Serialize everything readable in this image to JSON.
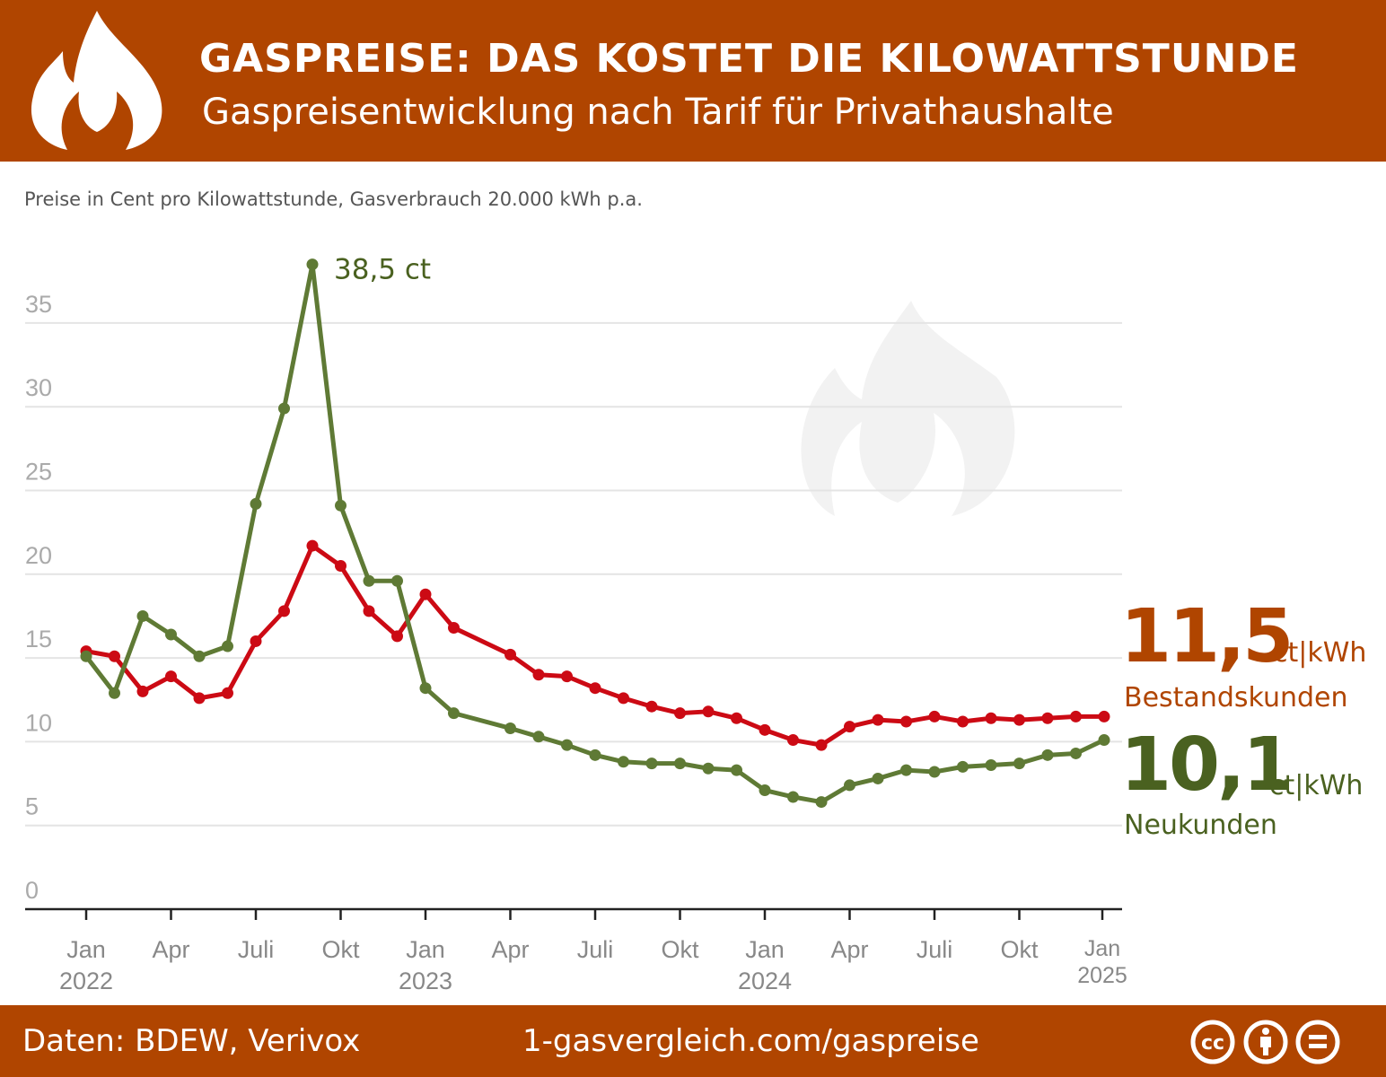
{
  "header": {
    "title": "GASPREISE: DAS KOSTET DIE KILOWATTSTUNDE",
    "subtitle": "Gaspreisentwicklung nach Tarif für Privathaushalte",
    "icon": "flame-icon"
  },
  "note": "Preise in Cent pro Kilowattstunde, Gasverbrauch 20.000 kWh p.a.",
  "footer": {
    "source": "Daten: BDEW, Verivox",
    "url": "1-gasvergleich.com/gaspreise",
    "license_icons": [
      "cc-icon",
      "by-icon",
      "nd-icon"
    ]
  },
  "labels": {
    "bestand_value": "11,5",
    "bestand_unit": "ct|kWh",
    "bestand_name": "Bestandskunden",
    "neu_value": "10,1",
    "neu_unit": "ct|kWh",
    "neu_name": "Neukunden",
    "peak": "38,5 ct"
  },
  "colors": {
    "brand": "#b04500",
    "bestand": "#cc0a14",
    "neu": "#5f7a35",
    "neu_label": "#4a6120"
  },
  "chart_data": {
    "type": "line",
    "title": "GASPREISE: DAS KOSTET DIE KILOWATTSTUNDE",
    "ylim": [
      0,
      35
    ],
    "yticks": [
      0,
      5,
      10,
      15,
      20,
      25,
      30,
      35
    ],
    "grid": true,
    "xtick_labels": [
      [
        "Jan",
        "2022"
      ],
      [
        "Apr",
        ""
      ],
      [
        "Juli",
        ""
      ],
      [
        "Okt",
        ""
      ],
      [
        "Jan",
        "2023"
      ],
      [
        "Apr",
        ""
      ],
      [
        "Juli",
        ""
      ],
      [
        "Okt",
        ""
      ],
      [
        "Jan",
        "2024"
      ],
      [
        "Apr",
        ""
      ],
      [
        "Juli",
        ""
      ],
      [
        "Okt",
        ""
      ],
      [
        "Jan",
        "2025"
      ]
    ],
    "x": [
      "2022-01",
      "2022-02",
      "2022-03",
      "2022-04",
      "2022-05",
      "2022-06",
      "2022-07",
      "2022-08",
      "2022-09",
      "2022-10",
      "2022-11",
      "2022-12",
      "2023-01",
      "2023-02",
      "2023-03",
      "2023-04",
      "2023-05",
      "2023-06",
      "2023-07",
      "2023-08",
      "2023-09",
      "2023-10",
      "2023-11",
      "2023-12",
      "2024-01",
      "2024-02",
      "2024-03",
      "2024-04",
      "2024-05",
      "2024-06",
      "2024-07",
      "2024-08",
      "2024-09",
      "2024-10",
      "2024-11",
      "2024-12",
      "2025-01"
    ],
    "series": [
      {
        "name": "Bestandskunden",
        "color": "#cc0a14",
        "values": [
          15.4,
          15.1,
          13.0,
          13.9,
          12.6,
          12.9,
          16.0,
          17.8,
          21.7,
          20.5,
          17.8,
          16.3,
          18.8,
          16.8,
          null,
          15.2,
          14.0,
          13.9,
          13.2,
          12.6,
          12.1,
          11.7,
          11.8,
          11.4,
          10.7,
          10.1,
          9.8,
          10.9,
          11.3,
          11.2,
          11.5,
          11.2,
          11.4,
          11.3,
          11.4,
          11.5,
          11.5
        ]
      },
      {
        "name": "Neukunden",
        "color": "#5f7a35",
        "values": [
          15.1,
          12.9,
          17.5,
          16.4,
          15.1,
          15.7,
          24.2,
          29.9,
          38.5,
          24.1,
          19.6,
          19.6,
          13.2,
          11.7,
          null,
          10.8,
          10.3,
          9.8,
          9.2,
          8.8,
          8.7,
          8.7,
          8.4,
          8.3,
          7.1,
          6.7,
          6.4,
          7.4,
          7.8,
          8.3,
          8.2,
          8.5,
          8.6,
          8.7,
          9.2,
          9.3,
          10.1
        ]
      }
    ]
  }
}
